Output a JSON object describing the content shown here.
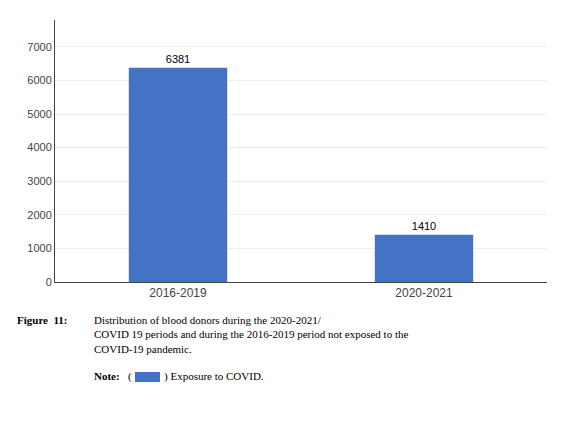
{
  "chart_data": {
    "type": "bar",
    "categories": [
      "2016-2019",
      "2020-2021"
    ],
    "values": [
      6381,
      1410
    ],
    "color": "#4472C4",
    "ylim": [
      0,
      7800
    ],
    "yticks": [
      0,
      1000,
      2000,
      3000,
      4000,
      5000,
      6000,
      7000
    ],
    "grid": true,
    "data_labels": true,
    "annotations": [
      "Figure  11:",
      "Distribution of blood donors during the 2020-2021/\nCOVID 19 periods and during the 2016-2019 period not exposed to the\nCOVID-19 pandemic.",
      "Note:",
      "(",
      ") Exposure to COVID."
    ]
  }
}
